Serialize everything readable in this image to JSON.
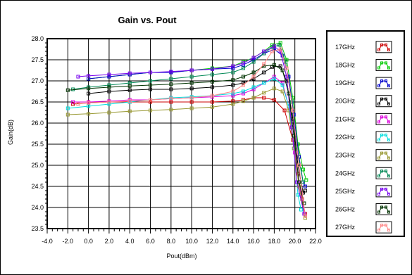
{
  "chart_data": {
    "type": "line",
    "title": "Gain vs. Pout",
    "xlabel": "Pout(dBm)",
    "ylabel": "Gain(dB)",
    "xlim": [
      -4.0,
      22.0
    ],
    "ylim": [
      23.5,
      28.0
    ],
    "x_ticks": [
      "-4.0",
      "-2.0",
      "0.0",
      "2.0",
      "4.0",
      "6.0",
      "8.0",
      "10.0",
      "12.0",
      "14.0",
      "16.0",
      "18.0",
      "20.0",
      "22.0"
    ],
    "y_ticks": [
      "23.5",
      "24.0",
      "24.5",
      "25.0",
      "25.5",
      "26.0",
      "26.5",
      "27.0",
      "27.5",
      "28.0"
    ],
    "grid": true,
    "legend_position": "right",
    "series": [
      {
        "name": "17GHz",
        "color": "#cc0000",
        "points": [
          [
            -1.5,
            26.45
          ],
          [
            0,
            26.48
          ],
          [
            2,
            26.5
          ],
          [
            4,
            26.5
          ],
          [
            6,
            26.5
          ],
          [
            8,
            26.5
          ],
          [
            10,
            26.5
          ],
          [
            12,
            26.5
          ],
          [
            14,
            26.52
          ],
          [
            15,
            26.55
          ],
          [
            16,
            26.6
          ],
          [
            17,
            26.6
          ],
          [
            18,
            26.55
          ],
          [
            19,
            26.3
          ],
          [
            19.8,
            25.6
          ],
          [
            20.3,
            24.8
          ],
          [
            20.7,
            24.2
          ],
          [
            21,
            23.85
          ]
        ]
      },
      {
        "name": "18GHz",
        "color": "#00cc00",
        "points": [
          [
            0,
            27.05
          ],
          [
            2,
            27.1
          ],
          [
            4,
            27.15
          ],
          [
            6,
            27.2
          ],
          [
            8,
            27.2
          ],
          [
            10,
            27.25
          ],
          [
            12,
            27.3
          ],
          [
            14,
            27.35
          ],
          [
            15,
            27.45
          ],
          [
            16,
            27.55
          ],
          [
            17,
            27.7
          ],
          [
            17.8,
            27.85
          ],
          [
            18.6,
            27.9
          ],
          [
            19.2,
            27.5
          ],
          [
            19.8,
            26.6
          ],
          [
            20.3,
            25.5
          ],
          [
            20.8,
            24.9
          ],
          [
            21.1,
            24.65
          ]
        ]
      },
      {
        "name": "19GHz",
        "color": "#0000cc",
        "points": [
          [
            0,
            27.05
          ],
          [
            2,
            27.1
          ],
          [
            4,
            27.15
          ],
          [
            6,
            27.2
          ],
          [
            8,
            27.2
          ],
          [
            10,
            27.25
          ],
          [
            12,
            27.28
          ],
          [
            14,
            27.3
          ],
          [
            15,
            27.38
          ],
          [
            16,
            27.5
          ],
          [
            17,
            27.65
          ],
          [
            18,
            27.75
          ],
          [
            18.8,
            27.6
          ],
          [
            19.4,
            27.1
          ],
          [
            19.9,
            26.2
          ],
          [
            20.4,
            25.2
          ],
          [
            20.8,
            24.6
          ],
          [
            21,
            24.5
          ]
        ]
      },
      {
        "name": "20GHz",
        "color": "#000000",
        "points": [
          [
            0,
            26.7
          ],
          [
            2,
            26.75
          ],
          [
            4,
            26.78
          ],
          [
            6,
            26.8
          ],
          [
            8,
            26.8
          ],
          [
            10,
            26.82
          ],
          [
            12,
            26.85
          ],
          [
            14,
            26.9
          ],
          [
            15,
            26.95
          ],
          [
            16,
            27.05
          ],
          [
            17,
            27.2
          ],
          [
            17.8,
            27.33
          ],
          [
            18.6,
            27.35
          ],
          [
            19.2,
            27.0
          ],
          [
            19.8,
            26.1
          ],
          [
            20.3,
            25.0
          ],
          [
            20.8,
            24.35
          ],
          [
            21,
            24.4
          ]
        ]
      },
      {
        "name": "21GHz",
        "color": "#dd00dd",
        "points": [
          [
            -1.5,
            26.5
          ],
          [
            0,
            26.5
          ],
          [
            2,
            26.52
          ],
          [
            4,
            26.55
          ],
          [
            6,
            26.55
          ],
          [
            8,
            26.58
          ],
          [
            10,
            26.6
          ],
          [
            12,
            26.62
          ],
          [
            14,
            26.65
          ],
          [
            15,
            26.7
          ],
          [
            16,
            26.8
          ],
          [
            17,
            26.95
          ],
          [
            18,
            27.1
          ],
          [
            18.8,
            26.95
          ],
          [
            19.4,
            26.4
          ],
          [
            20,
            25.3
          ],
          [
            20.6,
            24.3
          ],
          [
            21,
            23.8
          ]
        ]
      },
      {
        "name": "22GHz",
        "color": "#00dddd",
        "points": [
          [
            -2,
            26.35
          ],
          [
            0,
            26.4
          ],
          [
            2,
            26.45
          ],
          [
            4,
            26.5
          ],
          [
            6,
            26.55
          ],
          [
            8,
            26.6
          ],
          [
            10,
            26.62
          ],
          [
            12,
            26.65
          ],
          [
            14,
            26.7
          ],
          [
            15,
            26.75
          ],
          [
            16,
            26.85
          ],
          [
            17,
            26.95
          ],
          [
            18,
            27.05
          ],
          [
            18.8,
            26.9
          ],
          [
            19.4,
            26.4
          ],
          [
            19.9,
            25.4
          ],
          [
            20.3,
            24.3
          ],
          [
            20.6,
            23.95
          ]
        ]
      },
      {
        "name": "23GHz",
        "color": "#999933",
        "points": [
          [
            -2,
            26.2
          ],
          [
            0,
            26.22
          ],
          [
            2,
            26.25
          ],
          [
            4,
            26.28
          ],
          [
            6,
            26.3
          ],
          [
            8,
            26.32
          ],
          [
            10,
            26.35
          ],
          [
            12,
            26.38
          ],
          [
            14,
            26.45
          ],
          [
            15,
            26.52
          ],
          [
            16,
            26.6
          ],
          [
            17,
            26.72
          ],
          [
            18,
            26.82
          ],
          [
            18.8,
            26.75
          ],
          [
            19.4,
            26.3
          ],
          [
            19.9,
            25.4
          ],
          [
            20.4,
            24.5
          ],
          [
            21,
            23.75
          ]
        ]
      },
      {
        "name": "24GHz",
        "color": "#008855",
        "points": [
          [
            -1.5,
            26.8
          ],
          [
            0,
            26.85
          ],
          [
            2,
            26.9
          ],
          [
            4,
            26.95
          ],
          [
            6,
            27.0
          ],
          [
            8,
            27.05
          ],
          [
            10,
            27.1
          ],
          [
            12,
            27.15
          ],
          [
            14,
            27.2
          ],
          [
            15,
            27.3
          ],
          [
            16,
            27.45
          ],
          [
            17,
            27.65
          ],
          [
            17.8,
            27.8
          ],
          [
            18.5,
            27.85
          ],
          [
            19.1,
            27.45
          ],
          [
            19.7,
            26.5
          ],
          [
            20.2,
            25.4
          ],
          [
            20.8,
            24.6
          ]
        ]
      },
      {
        "name": "25GHz",
        "color": "#7700ee",
        "points": [
          [
            -1,
            27.1
          ],
          [
            0,
            27.12
          ],
          [
            2,
            27.15
          ],
          [
            4,
            27.18
          ],
          [
            6,
            27.2
          ],
          [
            8,
            27.22
          ],
          [
            10,
            27.25
          ],
          [
            12,
            27.28
          ],
          [
            14,
            27.35
          ],
          [
            15,
            27.42
          ],
          [
            16,
            27.55
          ],
          [
            17,
            27.7
          ],
          [
            18,
            27.82
          ],
          [
            18.6,
            27.7
          ],
          [
            19.2,
            27.1
          ],
          [
            19.7,
            25.9
          ],
          [
            20.2,
            24.6
          ],
          [
            20.9,
            23.85
          ]
        ]
      },
      {
        "name": "26GHz",
        "color": "#003300",
        "points": [
          [
            -2,
            26.78
          ],
          [
            0,
            26.82
          ],
          [
            2,
            26.85
          ],
          [
            4,
            26.88
          ],
          [
            6,
            26.9
          ],
          [
            8,
            26.92
          ],
          [
            10,
            26.95
          ],
          [
            12,
            26.98
          ],
          [
            14,
            27.02
          ],
          [
            15,
            27.1
          ],
          [
            16,
            27.2
          ],
          [
            17,
            27.35
          ],
          [
            18,
            27.38
          ],
          [
            18.8,
            27.25
          ],
          [
            19.4,
            26.7
          ],
          [
            19.9,
            25.7
          ],
          [
            20.4,
            24.6
          ],
          [
            20.9,
            24.1
          ]
        ]
      },
      {
        "name": "27GHz",
        "color": "#ff8888",
        "points": [
          [
            -1,
            26.45
          ],
          [
            0,
            26.48
          ],
          [
            2,
            26.5
          ],
          [
            4,
            26.52
          ],
          [
            6,
            26.55
          ],
          [
            8,
            26.58
          ],
          [
            10,
            26.6
          ],
          [
            12,
            26.65
          ],
          [
            14,
            26.75
          ],
          [
            15,
            26.9
          ],
          [
            16,
            27.1
          ],
          [
            17,
            27.4
          ],
          [
            17.8,
            27.7
          ],
          [
            18.6,
            27.75
          ],
          [
            19.2,
            27.3
          ],
          [
            19.8,
            26.3
          ],
          [
            20.4,
            25.0
          ],
          [
            21,
            23.8
          ]
        ]
      }
    ]
  }
}
